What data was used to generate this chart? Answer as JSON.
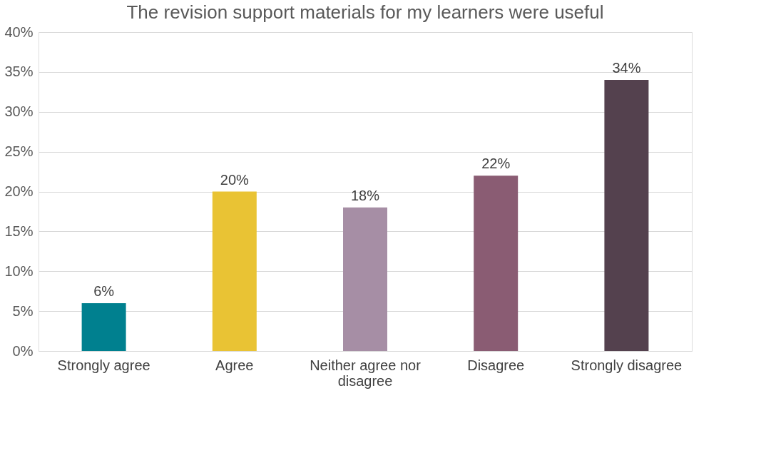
{
  "chart_data": {
    "type": "bar",
    "title": "The revision support materials for my learners were useful",
    "categories": [
      "Strongly agree",
      "Agree",
      "Neither agree nor disagree",
      "Disagree",
      "Strongly disagree"
    ],
    "values": [
      6,
      20,
      18,
      22,
      34
    ],
    "value_labels": [
      "6%",
      "20%",
      "18%",
      "22%",
      "34%"
    ],
    "colors": [
      "#00808f",
      "#e9c334",
      "#a68ea5",
      "#8a5c73",
      "#54414e"
    ],
    "ylim": [
      0,
      40
    ],
    "yticks": [
      {
        "value": 0,
        "label": "0%"
      },
      {
        "value": 5,
        "label": "5%"
      },
      {
        "value": 10,
        "label": "10%"
      },
      {
        "value": 15,
        "label": "15%"
      },
      {
        "value": 20,
        "label": "20%"
      },
      {
        "value": 25,
        "label": "25%"
      },
      {
        "value": 30,
        "label": "30%"
      },
      {
        "value": 35,
        "label": "35%"
      },
      {
        "value": 40,
        "label": "40%"
      }
    ],
    "grid": "y"
  }
}
